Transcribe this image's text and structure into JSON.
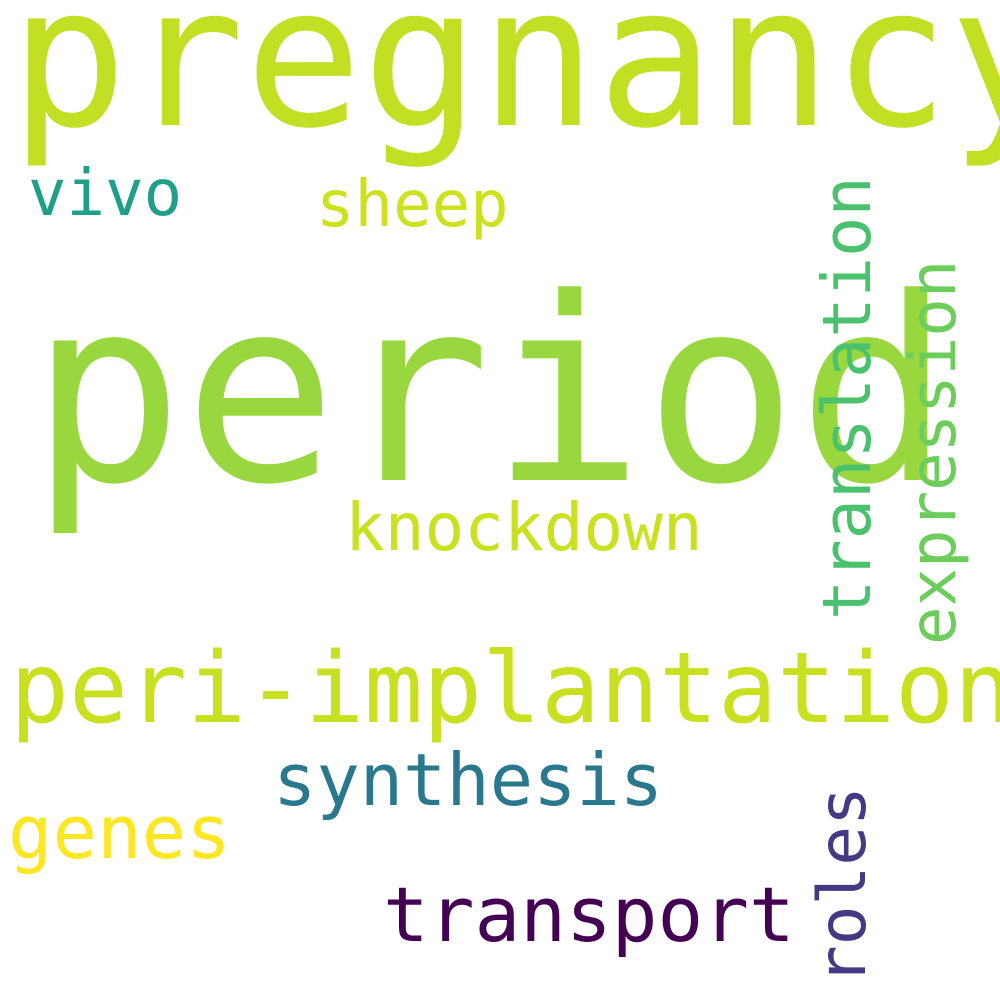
{
  "words": [
    {
      "key": "pregnancy",
      "text": "pregnancy",
      "color": "#c2df23"
    },
    {
      "key": "period",
      "text": "period",
      "color": "#98d83e"
    },
    {
      "key": "vivo",
      "text": "vivo",
      "color": "#1f9e89"
    },
    {
      "key": "sheep",
      "text": "sheep",
      "color": "#cde11d"
    },
    {
      "key": "knockdown",
      "text": "knockdown",
      "color": "#cae11f"
    },
    {
      "key": "peri",
      "text": "peri-implantation",
      "color": "#c8e020"
    },
    {
      "key": "synthesis",
      "text": "synthesis",
      "color": "#2a788e"
    },
    {
      "key": "genes",
      "text": "genes",
      "color": "#fde725"
    },
    {
      "key": "transport",
      "text": "transport",
      "color": "#440154"
    },
    {
      "key": "translation",
      "text": "translation",
      "color": "#4ac16d"
    },
    {
      "key": "expression",
      "text": "expression",
      "color": "#6ccd5a"
    },
    {
      "key": "roles",
      "text": "roles",
      "color": "#443983"
    }
  ]
}
